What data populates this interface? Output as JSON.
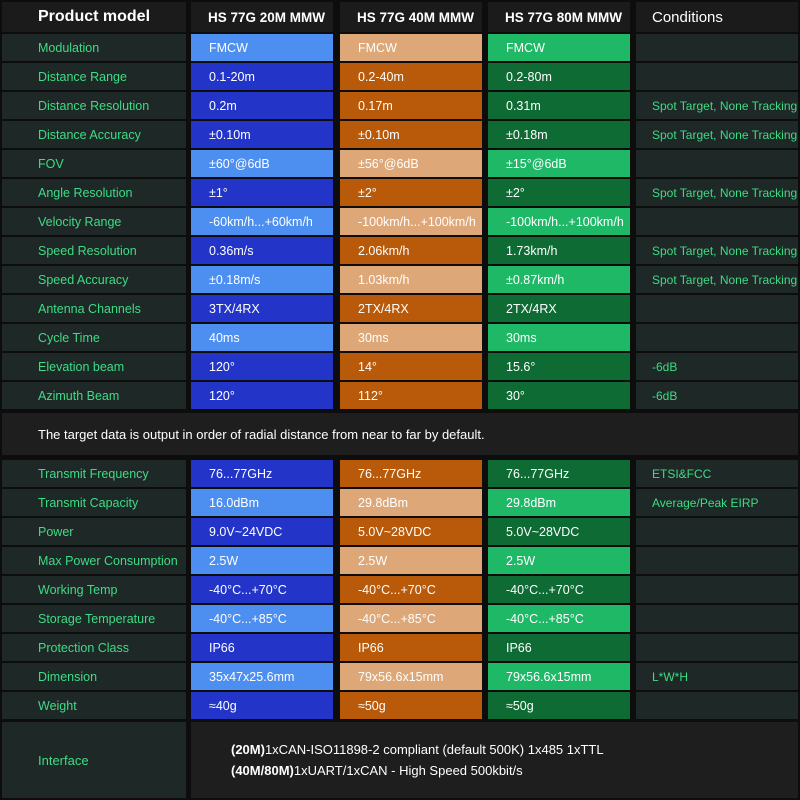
{
  "header": {
    "product_model": "Product model",
    "models": [
      "HS 77G 20M MMW",
      "HS 77G 40M MMW",
      "HS 77G 80M MMW"
    ],
    "conditions": "Conditions"
  },
  "rows_top": [
    {
      "label": "Modulation",
      "values": [
        "FMCW",
        "FMCW",
        "FMCW"
      ],
      "condition": ""
    },
    {
      "label": "Distance Range",
      "values": [
        "0.1-20m",
        "0.2-40m",
        "0.2-80m"
      ],
      "condition": ""
    },
    {
      "label": "Distance Resolution",
      "values": [
        "0.2m",
        "0.17m",
        "0.31m"
      ],
      "condition": "Spot Target, None Tracking"
    },
    {
      "label": "Distance Accuracy",
      "values": [
        "±0.10m",
        "±0.10m",
        "±0.18m"
      ],
      "condition": "Spot Target, None Tracking"
    },
    {
      "label": "FOV",
      "values": [
        "±60°@6dB",
        "±56°@6dB",
        "±15°@6dB"
      ],
      "condition": ""
    },
    {
      "label": "Angle Resolution",
      "values": [
        "±1°",
        "±2°",
        "±2°"
      ],
      "condition": "Spot Target, None Tracking"
    },
    {
      "label": "Velocity Range",
      "values": [
        "-60km/h...+60km/h",
        "-100km/h...+100km/h",
        "-100km/h...+100km/h"
      ],
      "condition": ""
    },
    {
      "label": "Speed Resolution",
      "values": [
        "0.36m/s",
        "2.06km/h",
        "1.73km/h"
      ],
      "condition": "Spot Target, None Tracking"
    },
    {
      "label": "Speed Accuracy",
      "values": [
        "±0.18m/s",
        "1.03km/h",
        "±0.87km/h"
      ],
      "condition": "Spot Target, None Tracking"
    },
    {
      "label": "Antenna Channels",
      "values": [
        "3TX/4RX",
        "2TX/4RX",
        "2TX/4RX"
      ],
      "condition": ""
    },
    {
      "label": "Cycle Time",
      "values": [
        "40ms",
        "30ms",
        "30ms"
      ],
      "condition": ""
    },
    {
      "label": "Elevation beam",
      "values": [
        "120°",
        "14°",
        "15.6°"
      ],
      "condition": "-6dB"
    },
    {
      "label": "Azimuth Beam",
      "values": [
        "120°",
        "112°",
        "30°"
      ],
      "condition": "-6dB"
    }
  ],
  "note": "The target data is output in order of radial distance from near to far by default.",
  "rows_bottom": [
    {
      "label": "Transmit Frequency",
      "values": [
        "76...77GHz",
        "76...77GHz",
        "76...77GHz"
      ],
      "condition": "ETSI&FCC"
    },
    {
      "label": "Transmit Capacity",
      "values": [
        "16.0dBm",
        "29.8dBm",
        "29.8dBm"
      ],
      "condition": "Average/Peak EIRP"
    },
    {
      "label": "Power",
      "values": [
        "9.0V~24VDC",
        "5.0V~28VDC",
        "5.0V~28VDC"
      ],
      "condition": ""
    },
    {
      "label": "Max Power Consumption",
      "values": [
        "2.5W",
        "2.5W",
        "2.5W"
      ],
      "condition": ""
    },
    {
      "label": "Working Temp",
      "values": [
        "-40°C...+70°C",
        "-40°C...+70°C",
        "-40°C...+70°C"
      ],
      "condition": ""
    },
    {
      "label": "Storage Temperature",
      "values": [
        "-40°C...+85°C",
        "-40°C...+85°C",
        "-40°C...+85°C"
      ],
      "condition": ""
    },
    {
      "label": "Protection Class",
      "values": [
        "IP66",
        "IP66",
        "IP66"
      ],
      "condition": ""
    },
    {
      "label": "Dimension",
      "values": [
        "35x47x25.6mm",
        "79x56.6x15mm",
        "79x56.6x15mm"
      ],
      "condition": "L*W*H"
    },
    {
      "label": "Weight",
      "values": [
        "≈40g",
        "≈50g",
        "≈50g"
      ],
      "condition": ""
    }
  ],
  "interface": {
    "label": "Interface",
    "line1_bold": "(20M)",
    "line1_text": "1xCAN-ISO11898-2 compliant (default 500K) 1x485 1xTTL",
    "line2_bold": "(40M/80M)",
    "line2_text": "1xUART/1xCAN - High Speed 500kbit/s"
  },
  "colors": {
    "background": "#0d0d0d",
    "label_green": "#3ddc85",
    "col_20m_dark": "#2335c8",
    "col_20m_light": "#4d8ff0",
    "col_40m_dark": "#b85a0a",
    "col_40m_light": "#dea778",
    "col_80m_dark": "#0f6b34",
    "col_80m_light": "#1eb866"
  }
}
